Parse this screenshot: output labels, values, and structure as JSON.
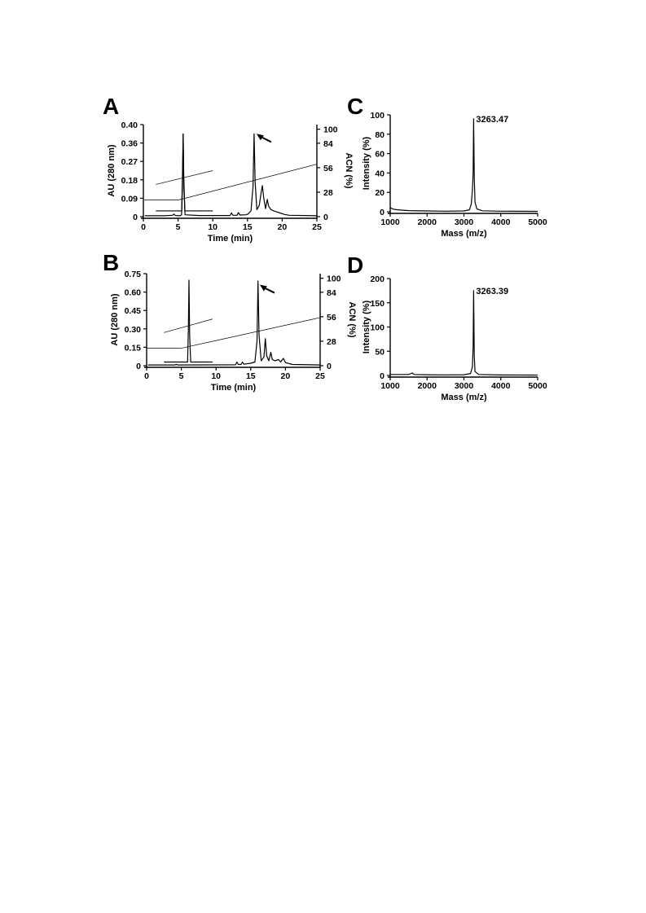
{
  "panels": [
    {
      "letter": "A",
      "chart_data": {
        "type": "line",
        "xlabel": "Time (min)",
        "ylabel": "AU (280 nm)",
        "y2label": "ACN (%)",
        "xlim": [
          0,
          25
        ],
        "ylim": [
          0,
          0.4
        ],
        "y2lim": [
          0,
          100
        ],
        "xticks": [
          "0",
          "5",
          "10",
          "15",
          "20",
          "25"
        ],
        "yticks": [
          "0",
          "0.09",
          "0.18",
          "0.27",
          "0.36",
          "0.40"
        ],
        "y2ticks": [
          "0",
          "28",
          "56",
          "84",
          "100"
        ],
        "series": [
          {
            "points": [
              [
                0.2,
                0.004
              ],
              [
                3,
                0.004
              ],
              [
                4.2,
                0.006
              ],
              [
                4.4,
                0.011
              ],
              [
                4.6,
                0.005
              ],
              [
                5.3,
                0.004
              ],
              [
                5.5,
                0.008
              ],
              [
                5.65,
                0.2
              ],
              [
                5.73,
                0.36
              ],
              [
                5.82,
                0.17
              ],
              [
                6.0,
                0.008
              ],
              [
                8,
                0.005
              ],
              [
                12.5,
                0.005
              ],
              [
                12.7,
                0.016
              ],
              [
                12.9,
                0.006
              ],
              [
                13.5,
                0.006
              ],
              [
                13.7,
                0.018
              ],
              [
                13.9,
                0.007
              ],
              [
                14.8,
                0.008
              ],
              [
                15.1,
                0.012
              ],
              [
                15.5,
                0.025
              ],
              [
                15.8,
                0.13
              ],
              [
                15.95,
                0.36
              ],
              [
                16.1,
                0.15
              ],
              [
                16.35,
                0.03
              ],
              [
                16.7,
                0.05
              ],
              [
                17.0,
                0.11
              ],
              [
                17.15,
                0.135
              ],
              [
                17.35,
                0.08
              ],
              [
                17.6,
                0.035
              ],
              [
                17.85,
                0.075
              ],
              [
                18.05,
                0.045
              ],
              [
                18.4,
                0.03
              ],
              [
                18.8,
                0.025
              ],
              [
                19.3,
                0.02
              ],
              [
                19.7,
                0.016
              ],
              [
                20.3,
                0.01
              ],
              [
                21,
                0.006
              ],
              [
                25,
                0.004
              ]
            ]
          }
        ],
        "inset": {
          "gradient": [
            [
              1.8,
              0.14
            ],
            [
              10,
              0.2
            ]
          ],
          "trace": {
            "x": [
              1.8,
              10
            ],
            "baseline": 0.025,
            "peak_x": 5.73,
            "peak_y": 0.36
          }
        },
        "acn_gradient": [
          [
            0,
            19
          ],
          [
            5,
            19
          ],
          [
            25,
            60
          ]
        ],
        "arrow_at": [
          16.3,
          0.36
        ]
      }
    },
    {
      "letter": "B",
      "chart_data": {
        "type": "line",
        "xlabel": "Time (min)",
        "ylabel": "AU (280 nm)",
        "y2label": "ACN (%)",
        "xlim": [
          0,
          25
        ],
        "ylim": [
          0,
          0.75
        ],
        "y2lim": [
          0,
          100
        ],
        "xticks": [
          "0",
          "5",
          "10",
          "15",
          "20",
          "25"
        ],
        "yticks": [
          "0",
          "0.15",
          "0.30",
          "0.45",
          "0.60",
          "0.75"
        ],
        "y2ticks": [
          "0",
          "28",
          "56",
          "84",
          "100"
        ],
        "series": [
          {
            "points": [
              [
                0.2,
                0.006
              ],
              [
                4,
                0.006
              ],
              [
                4.3,
                0.01
              ],
              [
                4.5,
                0.006
              ],
              [
                12.8,
                0.007
              ],
              [
                13.0,
                0.03
              ],
              [
                13.2,
                0.01
              ],
              [
                13.6,
                0.01
              ],
              [
                13.8,
                0.03
              ],
              [
                14,
                0.012
              ],
              [
                15,
                0.02
              ],
              [
                15.6,
                0.03
              ],
              [
                15.9,
                0.2
              ],
              [
                16.05,
                0.69
              ],
              [
                16.2,
                0.25
              ],
              [
                16.5,
                0.04
              ],
              [
                16.9,
                0.07
              ],
              [
                17.1,
                0.22
              ],
              [
                17.3,
                0.08
              ],
              [
                17.6,
                0.04
              ],
              [
                17.9,
                0.11
              ],
              [
                18.1,
                0.05
              ],
              [
                18.5,
                0.04
              ],
              [
                19,
                0.05
              ],
              [
                19.3,
                0.03
              ],
              [
                19.7,
                0.06
              ],
              [
                20,
                0.025
              ],
              [
                21,
                0.01
              ],
              [
                25,
                0.006
              ]
            ]
          }
        ],
        "inset": {
          "gradient": [
            [
              2.5,
              0.27
            ],
            [
              9.5,
              0.38
            ]
          ],
          "trace": {
            "x": [
              2.5,
              9.5
            ],
            "baseline": 0.03,
            "peak_x": 6.1,
            "peak_y": 0.7
          }
        },
        "acn_gradient": [
          [
            0,
            20
          ],
          [
            5,
            20
          ],
          [
            25,
            55
          ]
        ],
        "arrow_at": [
          16.3,
          0.66
        ]
      }
    },
    {
      "letter": "C",
      "chart_data": {
        "type": "line",
        "xlabel": "Mass (m/z)",
        "ylabel": "Intensity (%)",
        "xlim": [
          1000,
          5000
        ],
        "ylim": [
          0,
          100
        ],
        "xticks": [
          "1000",
          "2000",
          "3000",
          "4000",
          "5000"
        ],
        "yticks": [
          "0",
          "20",
          "40",
          "60",
          "80",
          "100"
        ],
        "peak_label": "3263.47",
        "peak_x": 3263.47,
        "peak_y": 96,
        "series": [
          {
            "points": [
              [
                1000,
                4
              ],
              [
                1100,
                2.5
              ],
              [
                1200,
                2
              ],
              [
                1500,
                1.2
              ],
              [
                2000,
                0.8
              ],
              [
                2500,
                0.6
              ],
              [
                3000,
                0.8
              ],
              [
                3150,
                2
              ],
              [
                3200,
                8
              ],
              [
                3230,
                22
              ],
              [
                3250,
                40
              ],
              [
                3263.47,
                96
              ],
              [
                3280,
                35
              ],
              [
                3300,
                10
              ],
              [
                3350,
                3
              ],
              [
                3500,
                1
              ],
              [
                4000,
                0.6
              ],
              [
                4500,
                0.5
              ],
              [
                5000,
                0.4
              ]
            ]
          }
        ]
      }
    },
    {
      "letter": "D",
      "chart_data": {
        "type": "line",
        "xlabel": "Mass (m/z)",
        "ylabel": "Intensity (%)",
        "xlim": [
          1000,
          5000
        ],
        "ylim": [
          0,
          200
        ],
        "xticks": [
          "1000",
          "2000",
          "3000",
          "4000",
          "5000"
        ],
        "yticks": [
          "0",
          "50",
          "100",
          "150",
          "200"
        ],
        "peak_label": "3263.39",
        "peak_x": 3263.39,
        "peak_y": 175,
        "series": [
          {
            "points": [
              [
                1000,
                2
              ],
              [
                1500,
                2
              ],
              [
                1600,
                5
              ],
              [
                1650,
                2
              ],
              [
                2000,
                1.5
              ],
              [
                2500,
                1.2
              ],
              [
                3000,
                1.5
              ],
              [
                3180,
                4
              ],
              [
                3230,
                18
              ],
              [
                3250,
                60
              ],
              [
                3263.39,
                175
              ],
              [
                3280,
                40
              ],
              [
                3300,
                8
              ],
              [
                3400,
                2
              ],
              [
                4000,
                1
              ],
              [
                5000,
                0.8
              ]
            ]
          }
        ]
      }
    }
  ]
}
